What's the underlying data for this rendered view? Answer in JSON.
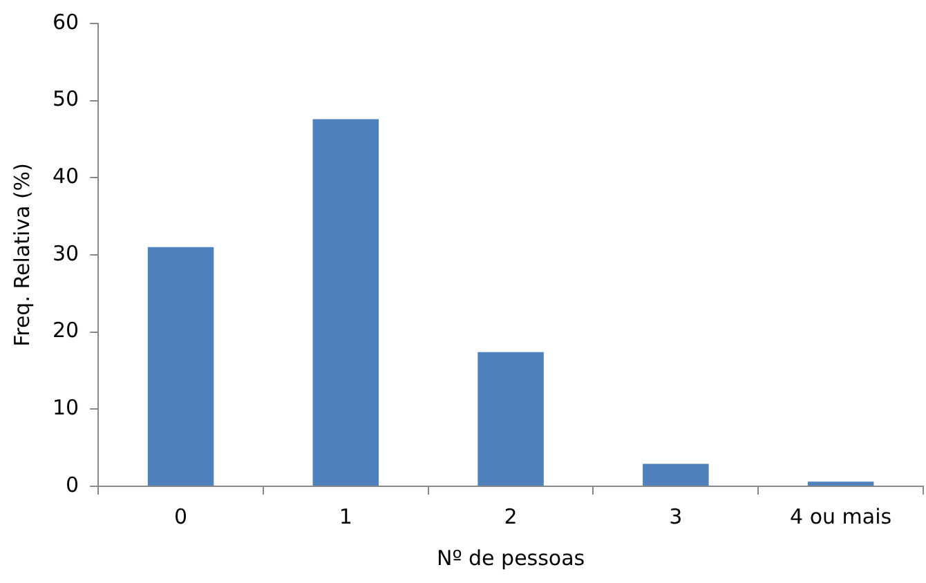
{
  "chart_data": {
    "type": "bar",
    "xlabel": "Nº de pessoas",
    "ylabel": "Freq. Relativa (%)",
    "categories": [
      "0",
      "1",
      "2",
      "3",
      "4 ou mais"
    ],
    "values": [
      31.0,
      47.6,
      17.4,
      2.9,
      0.6
    ],
    "color": "#4f81bd",
    "ylim": [
      0,
      60
    ],
    "yticks": [
      0,
      10,
      20,
      30,
      40,
      50,
      60
    ],
    "grid": false,
    "legend": false
  }
}
